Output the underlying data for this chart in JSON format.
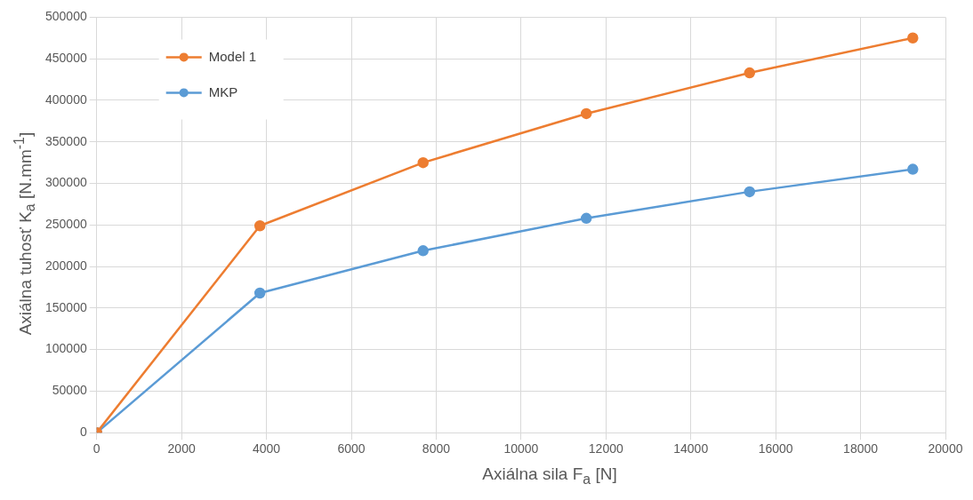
{
  "chart_data": {
    "type": "line",
    "xlabel": "Axiálna sila F$_{a}$ [N]",
    "ylabel": "Axiálna tuhosť K$_{a}$ [N.mm$^{-1}$]",
    "xlim": [
      0,
      20000
    ],
    "xticks": [
      0,
      2000,
      4000,
      6000,
      8000,
      10000,
      12000,
      14000,
      16000,
      18000,
      20000
    ],
    "ylim": [
      0,
      500000
    ],
    "yticks": [
      0,
      50000,
      100000,
      150000,
      200000,
      250000,
      300000,
      350000,
      400000,
      450000,
      500000
    ],
    "x": [
      0,
      3846,
      7692,
      11538,
      15385,
      19231
    ],
    "series": [
      {
        "name": "Model 1",
        "color": "#ed7d31",
        "values": [
          0,
          249000,
          325000,
          384000,
          433000,
          475000
        ]
      },
      {
        "name": "MKP",
        "color": "#5b9bd5",
        "values": [
          0,
          168000,
          219000,
          258000,
          290000,
          317000
        ]
      }
    ],
    "grid": true,
    "legend": "top left",
    "marker": "circle",
    "line_style": "solid"
  }
}
